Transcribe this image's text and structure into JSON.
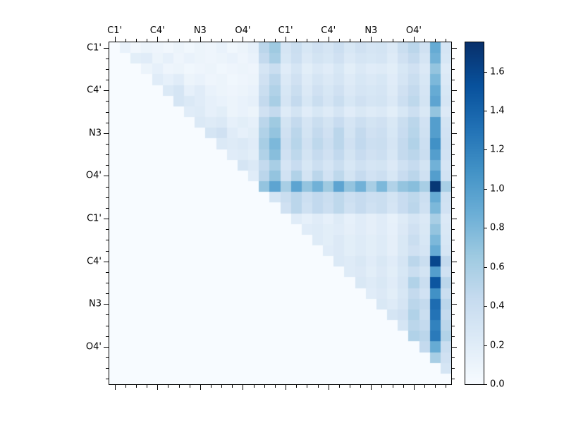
{
  "chart_data": {
    "type": "heatmap",
    "title": "",
    "n": 32,
    "x_tick_labels": [
      "C1'",
      "C4'",
      "N3",
      "O4'",
      "C1'",
      "C4'",
      "N3",
      "O4'"
    ],
    "y_tick_labels": [
      "C1'",
      "C4'",
      "N3",
      "O4'",
      "C1'",
      "C4'",
      "N3",
      "O4'"
    ],
    "tick_cell_indices": [
      0,
      4,
      8,
      12,
      16,
      20,
      24,
      28
    ],
    "vmin": 0,
    "vmax": 1.75,
    "grid": false,
    "legend_position": "colorbar-right",
    "colormap": {
      "name": "Blues",
      "stops": [
        {
          "pos": 0.0,
          "color": "#f7fbff"
        },
        {
          "pos": 0.125,
          "color": "#deebf7"
        },
        {
          "pos": 0.25,
          "color": "#c6dbef"
        },
        {
          "pos": 0.375,
          "color": "#9ecae1"
        },
        {
          "pos": 0.5,
          "color": "#6baed6"
        },
        {
          "pos": 0.625,
          "color": "#4292c6"
        },
        {
          "pos": 0.75,
          "color": "#2171b5"
        },
        {
          "pos": 0.875,
          "color": "#08519c"
        },
        {
          "pos": 1.0,
          "color": "#08306b"
        }
      ]
    },
    "colorbar_tick_labels": [
      "0.0",
      "0.2",
      "0.4",
      "0.6",
      "0.8",
      "1.0",
      "1.2",
      "1.4",
      "1.6"
    ],
    "colorbar_tick_values": [
      0,
      0.2,
      0.4,
      0.6,
      0.8,
      1.0,
      1.2,
      1.4,
      1.6
    ],
    "axis_color": "#000000",
    "background_color": "#ffffff",
    "matrix": {
      "encoding": "sparse_upper_triangular_rows",
      "default_value": 0,
      "rows": [
        {
          "row": 0,
          "first_col": 1,
          "values": [
            0.12,
            0.05,
            0.1,
            0.08,
            0.05,
            0.1,
            0.06,
            0.1,
            0.08,
            0.12,
            0.06,
            0.1,
            0.15,
            0.5,
            0.65,
            0.3,
            0.4,
            0.28,
            0.35,
            0.3,
            0.38,
            0.28,
            0.35,
            0.3,
            0.32,
            0.25,
            0.4,
            0.5,
            0.35,
            0.9,
            0.3
          ]
        },
        {
          "row": 1,
          "first_col": 2,
          "values": [
            0.18,
            0.2,
            0.1,
            0.15,
            0.08,
            0.12,
            0.1,
            0.08,
            0.1,
            0.12,
            0.08,
            0.12,
            0.45,
            0.6,
            0.28,
            0.38,
            0.25,
            0.32,
            0.28,
            0.35,
            0.25,
            0.3,
            0.28,
            0.3,
            0.22,
            0.35,
            0.45,
            0.3,
            0.85,
            0.28
          ]
        },
        {
          "row": 2,
          "first_col": 3,
          "values": [
            0.1,
            0.15,
            0.08,
            0.1,
            0.06,
            0.08,
            0.1,
            0.06,
            0.08,
            0.1,
            0.08,
            0.3,
            0.4,
            0.2,
            0.3,
            0.18,
            0.25,
            0.2,
            0.28,
            0.18,
            0.25,
            0.2,
            0.22,
            0.18,
            0.28,
            0.35,
            0.25,
            0.7,
            0.22
          ]
        },
        {
          "row": 3,
          "first_col": 4,
          "values": [
            0.2,
            0.15,
            0.2,
            0.1,
            0.12,
            0.08,
            0.1,
            0.06,
            0.08,
            0.1,
            0.35,
            0.5,
            0.25,
            0.35,
            0.22,
            0.3,
            0.25,
            0.3,
            0.22,
            0.28,
            0.25,
            0.28,
            0.2,
            0.3,
            0.4,
            0.28,
            0.8,
            0.25
          ]
        },
        {
          "row": 4,
          "first_col": 5,
          "values": [
            0.25,
            0.3,
            0.15,
            0.2,
            0.12,
            0.1,
            0.08,
            0.1,
            0.12,
            0.4,
            0.55,
            0.28,
            0.4,
            0.25,
            0.35,
            0.28,
            0.35,
            0.25,
            0.3,
            0.28,
            0.3,
            0.22,
            0.35,
            0.45,
            0.3,
            0.9,
            0.28
          ]
        },
        {
          "row": 5,
          "first_col": 6,
          "values": [
            0.3,
            0.25,
            0.2,
            0.15,
            0.12,
            0.1,
            0.12,
            0.15,
            0.45,
            0.6,
            0.3,
            0.45,
            0.28,
            0.4,
            0.3,
            0.4,
            0.28,
            0.35,
            0.3,
            0.32,
            0.25,
            0.38,
            0.48,
            0.32,
            0.95,
            0.3
          ]
        },
        {
          "row": 6,
          "first_col": 7,
          "values": [
            0.2,
            0.22,
            0.15,
            0.18,
            0.1,
            0.12,
            0.1,
            0.35,
            0.45,
            0.22,
            0.32,
            0.2,
            0.28,
            0.22,
            0.3,
            0.2,
            0.26,
            0.22,
            0.25,
            0.18,
            0.28,
            0.38,
            0.26,
            0.7,
            0.24
          ]
        },
        {
          "row": 7,
          "first_col": 8,
          "values": [
            0.25,
            0.22,
            0.25,
            0.15,
            0.18,
            0.15,
            0.5,
            0.65,
            0.32,
            0.45,
            0.3,
            0.4,
            0.32,
            0.42,
            0.3,
            0.38,
            0.32,
            0.35,
            0.26,
            0.4,
            0.5,
            0.34,
            1.0,
            0.32
          ]
        },
        {
          "row": 8,
          "first_col": 9,
          "values": [
            0.3,
            0.35,
            0.2,
            0.15,
            0.18,
            0.55,
            0.7,
            0.35,
            0.5,
            0.32,
            0.45,
            0.35,
            0.5,
            0.32,
            0.45,
            0.35,
            0.38,
            0.28,
            0.42,
            0.52,
            0.36,
            1.0,
            0.34
          ]
        },
        {
          "row": 9,
          "first_col": 10,
          "values": [
            0.25,
            0.22,
            0.25,
            0.2,
            0.6,
            0.8,
            0.38,
            0.52,
            0.35,
            0.48,
            0.38,
            0.5,
            0.35,
            0.46,
            0.38,
            0.4,
            0.3,
            0.45,
            0.55,
            0.38,
            1.1,
            0.36
          ]
        },
        {
          "row": 10,
          "first_col": 11,
          "values": [
            0.2,
            0.22,
            0.18,
            0.55,
            0.75,
            0.35,
            0.48,
            0.32,
            0.44,
            0.35,
            0.46,
            0.32,
            0.42,
            0.35,
            0.38,
            0.28,
            0.45,
            0.5,
            0.4,
            1.0,
            0.34
          ]
        },
        {
          "row": 11,
          "first_col": 12,
          "values": [
            0.3,
            0.25,
            0.45,
            0.6,
            0.3,
            0.42,
            0.28,
            0.38,
            0.3,
            0.4,
            0.28,
            0.36,
            0.3,
            0.32,
            0.24,
            0.36,
            0.44,
            0.32,
            0.85,
            0.3
          ]
        },
        {
          "row": 12,
          "first_col": 13,
          "values": [
            0.2,
            0.5,
            0.7,
            0.34,
            0.55,
            0.32,
            0.5,
            0.34,
            0.48,
            0.32,
            0.44,
            0.34,
            0.38,
            0.28,
            0.42,
            0.5,
            0.36,
            1.0,
            0.34
          ]
        },
        {
          "row": 13,
          "first_col": 14,
          "values": [
            0.7,
            0.95,
            0.6,
            0.95,
            0.7,
            0.85,
            0.65,
            0.95,
            0.7,
            0.85,
            0.6,
            0.8,
            0.55,
            0.7,
            0.75,
            0.6,
            1.7,
            0.6
          ]
        },
        {
          "row": 14,
          "first_col": 15,
          "values": [
            0.3,
            0.4,
            0.5,
            0.38,
            0.46,
            0.4,
            0.48,
            0.38,
            0.44,
            0.38,
            0.4,
            0.32,
            0.42,
            0.48,
            0.38,
            0.9,
            0.36
          ]
        },
        {
          "row": 15,
          "first_col": 16,
          "values": [
            0.35,
            0.5,
            0.36,
            0.46,
            0.38,
            0.48,
            0.36,
            0.44,
            0.36,
            0.4,
            0.3,
            0.42,
            0.5,
            0.36,
            0.8,
            0.34
          ]
        },
        {
          "row": 16,
          "first_col": 17,
          "values": [
            0.2,
            0.15,
            0.2,
            0.15,
            0.22,
            0.15,
            0.2,
            0.16,
            0.2,
            0.14,
            0.22,
            0.3,
            0.25,
            0.6,
            0.25
          ]
        },
        {
          "row": 17,
          "first_col": 18,
          "values": [
            0.2,
            0.22,
            0.18,
            0.2,
            0.16,
            0.2,
            0.16,
            0.2,
            0.15,
            0.24,
            0.35,
            0.26,
            0.7,
            0.26
          ]
        },
        {
          "row": 18,
          "first_col": 19,
          "values": [
            0.22,
            0.18,
            0.24,
            0.18,
            0.22,
            0.18,
            0.22,
            0.16,
            0.26,
            0.4,
            0.28,
            0.8,
            0.28
          ]
        },
        {
          "row": 19,
          "first_col": 20,
          "values": [
            0.2,
            0.24,
            0.18,
            0.22,
            0.18,
            0.22,
            0.16,
            0.26,
            0.35,
            0.3,
            0.9,
            0.3
          ]
        },
        {
          "row": 20,
          "first_col": 21,
          "values": [
            0.25,
            0.22,
            0.26,
            0.2,
            0.26,
            0.2,
            0.3,
            0.5,
            0.4,
            1.6,
            0.45
          ]
        },
        {
          "row": 21,
          "first_col": 22,
          "values": [
            0.22,
            0.24,
            0.18,
            0.24,
            0.18,
            0.28,
            0.4,
            0.32,
            1.0,
            0.35
          ]
        },
        {
          "row": 22,
          "first_col": 23,
          "values": [
            0.26,
            0.22,
            0.26,
            0.2,
            0.3,
            0.55,
            0.4,
            1.5,
            0.5
          ]
        },
        {
          "row": 23,
          "first_col": 24,
          "values": [
            0.2,
            0.24,
            0.18,
            0.28,
            0.45,
            0.34,
            1.1,
            0.4
          ]
        },
        {
          "row": 24,
          "first_col": 25,
          "values": [
            0.26,
            0.22,
            0.3,
            0.5,
            0.45,
            1.35,
            0.5
          ]
        },
        {
          "row": 25,
          "first_col": 26,
          "values": [
            0.3,
            0.35,
            0.55,
            0.4,
            1.3,
            0.45
          ]
        },
        {
          "row": 26,
          "first_col": 27,
          "values": [
            0.3,
            0.5,
            0.45,
            1.2,
            0.5
          ]
        },
        {
          "row": 27,
          "first_col": 28,
          "values": [
            0.55,
            0.5,
            1.25,
            0.55
          ]
        },
        {
          "row": 28,
          "first_col": 29,
          "values": [
            0.45,
            0.9,
            0.4
          ]
        },
        {
          "row": 29,
          "first_col": 30,
          "values": [
            0.6,
            0.35
          ]
        },
        {
          "row": 30,
          "first_col": 31,
          "values": [
            0.3
          ]
        },
        {
          "row": 31,
          "first_col": 0,
          "values": []
        }
      ]
    }
  }
}
